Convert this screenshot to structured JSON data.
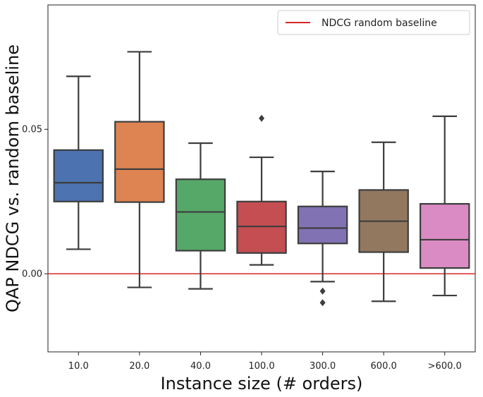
{
  "chart_data": {
    "type": "box",
    "title": "",
    "xlabel": "Instance size (# orders)",
    "ylabel": "QAP NDCG vs. random baseline",
    "ylim": [
      -0.027,
      0.093
    ],
    "yticks": [
      0.0,
      0.05
    ],
    "ytick_labels": [
      "0.00",
      "0.05"
    ],
    "categories": [
      "10.0",
      "20.0",
      "40.0",
      "100.0",
      "300.0",
      "600.0",
      ">600.0"
    ],
    "boxes": [
      {
        "category": "10.0",
        "whisker_low": 0.0085,
        "q1": 0.025,
        "median": 0.0315,
        "q3": 0.0428,
        "whisker_high": 0.0683,
        "outliers": [],
        "color": "#4c72b0"
      },
      {
        "category": "20.0",
        "whisker_low": -0.0047,
        "q1": 0.0248,
        "median": 0.0362,
        "q3": 0.0526,
        "whisker_high": 0.0768,
        "outliers": [],
        "color": "#dd8452"
      },
      {
        "category": "40.0",
        "whisker_low": -0.0052,
        "q1": 0.008,
        "median": 0.0214,
        "q3": 0.0327,
        "whisker_high": 0.0452,
        "outliers": [],
        "color": "#55a868"
      },
      {
        "category": "100.0",
        "whisker_low": 0.0031,
        "q1": 0.0072,
        "median": 0.0164,
        "q3": 0.025,
        "whisker_high": 0.0403,
        "outliers": [
          0.0538
        ],
        "color": "#c44e52"
      },
      {
        "category": "300.0",
        "whisker_low": -0.0027,
        "q1": 0.0105,
        "median": 0.0158,
        "q3": 0.0233,
        "whisker_high": 0.0354,
        "outliers": [
          -0.006,
          -0.01
        ],
        "color": "#8172b3"
      },
      {
        "category": "600.0",
        "whisker_low": -0.0095,
        "q1": 0.0075,
        "median": 0.0182,
        "q3": 0.029,
        "whisker_high": 0.0455,
        "outliers": [],
        "color": "#937860"
      },
      {
        "category": ">600.0",
        "whisker_low": -0.0075,
        "q1": 0.002,
        "median": 0.0118,
        "q3": 0.0242,
        "whisker_high": 0.0545,
        "outliers": [],
        "color": "#da8bc3"
      }
    ],
    "baseline": {
      "label": "NDCG random baseline",
      "value": 0.0,
      "color": "#d62728"
    },
    "legend": {
      "position": "top-right",
      "entries": [
        "NDCG random baseline"
      ]
    },
    "grid": false
  }
}
